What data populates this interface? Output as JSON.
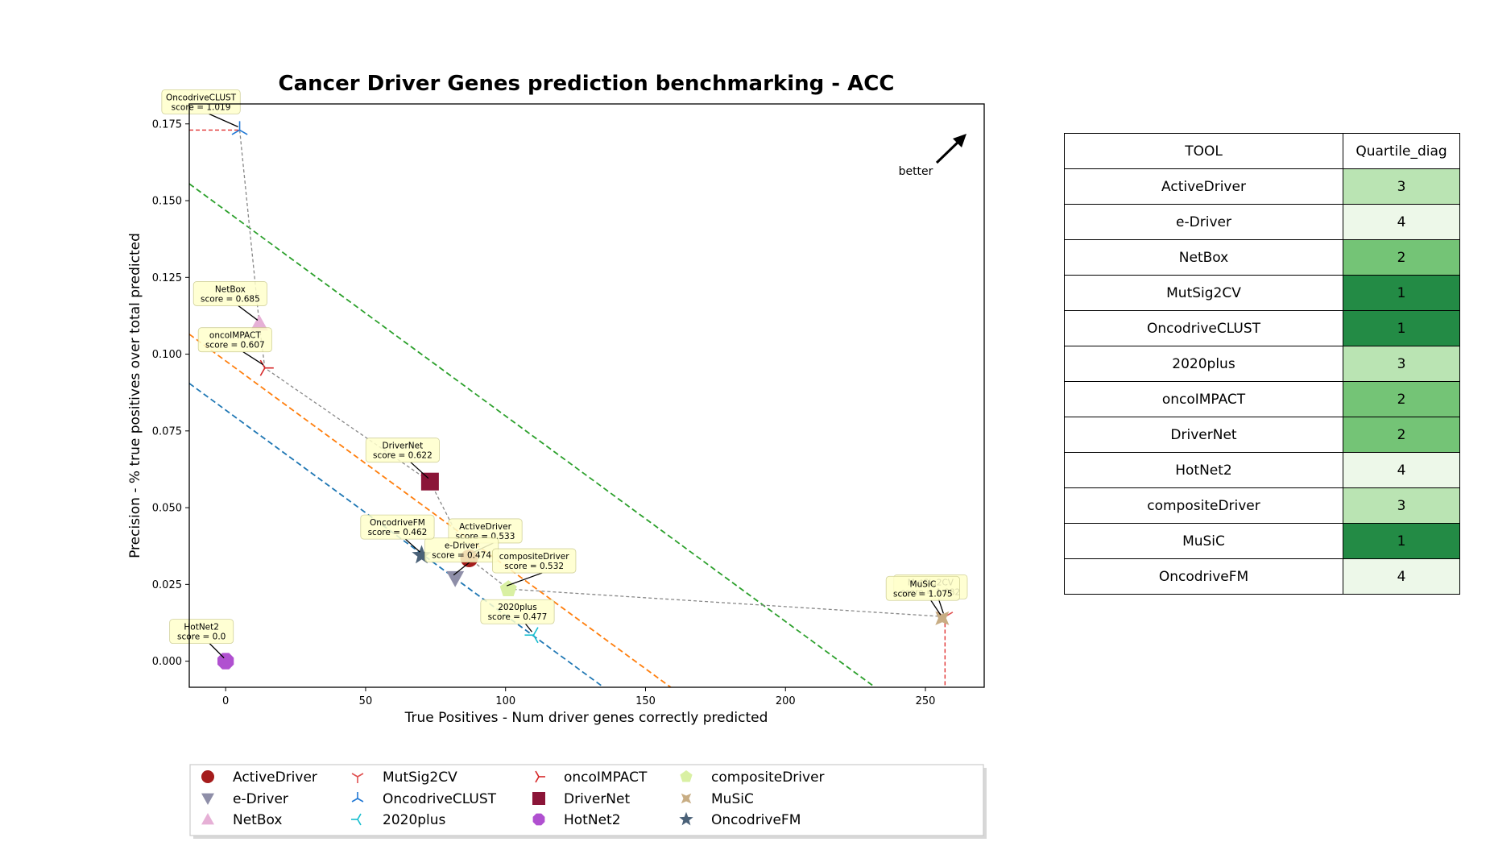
{
  "chart_data": {
    "type": "scatter",
    "title": "Cancer Driver Genes prediction benchmarking - ACC",
    "xlabel": "True Positives - Num driver genes correctly predicted",
    "ylabel": "Precision - % true positives over total predicted",
    "xlim": [
      -13,
      271
    ],
    "ylim": [
      -0.0085,
      0.1815
    ],
    "xticks": [
      0,
      50,
      100,
      150,
      200,
      250
    ],
    "yticks": [
      0.0,
      0.025,
      0.05,
      0.075,
      0.1,
      0.125,
      0.15,
      0.175
    ],
    "ytick_labels": [
      "0.000",
      "0.025",
      "0.050",
      "0.075",
      "0.100",
      "0.125",
      "0.150",
      "0.175"
    ],
    "better_label": "better",
    "legend_position": "bottom",
    "points": [
      {
        "name": "ActiveDriver",
        "x": 87,
        "y": 0.0335,
        "score": "score = 0.533",
        "marker": "circle",
        "color": "#a51c1c"
      },
      {
        "name": "e-Driver",
        "x": 82,
        "y": 0.027,
        "score": "score = 0.474",
        "marker": "triangle-down",
        "color": "#8e8ea8"
      },
      {
        "name": "NetBox",
        "x": 12,
        "y": 0.11,
        "score": "score = 0.685",
        "marker": "triangle-up",
        "color": "#e6b0d6"
      },
      {
        "name": "MutSig2CV",
        "x": 257,
        "y": 0.0145,
        "score": "score = 1.082",
        "marker": "tri-down",
        "color": "#e05050"
      },
      {
        "name": "OncodriveCLUST",
        "x": 5,
        "y": 0.173,
        "score": "score = 1.019",
        "marker": "tri-up",
        "color": "#1f77d4"
      },
      {
        "name": "2020plus",
        "x": 110,
        "y": 0.0085,
        "score": "score = 0.477",
        "marker": "tri-left",
        "color": "#17becf"
      },
      {
        "name": "oncoIMPACT",
        "x": 14,
        "y": 0.0955,
        "score": "score = 0.607",
        "marker": "tri-right",
        "color": "#d62728"
      },
      {
        "name": "DriverNet",
        "x": 73,
        "y": 0.0585,
        "score": "score = 0.622",
        "marker": "square",
        "color": "#8b1538"
      },
      {
        "name": "HotNet2",
        "x": 0,
        "y": 0.0,
        "score": "score = 0.0",
        "marker": "octagon",
        "color": "#b050d0"
      },
      {
        "name": "compositeDriver",
        "x": 101,
        "y": 0.0235,
        "score": "score = 0.532",
        "marker": "pentagon",
        "color": "#d9f0a3"
      },
      {
        "name": "MuSiC",
        "x": 256,
        "y": 0.014,
        "score": "score = 1.075",
        "marker": "plus",
        "color": "#c8ad84"
      },
      {
        "name": "OncodriveFM",
        "x": 70,
        "y": 0.0345,
        "score": "score = 0.462",
        "marker": "star",
        "color": "#4a6178"
      }
    ],
    "pareto_line": [
      {
        "x": 5,
        "y": 0.173
      },
      {
        "x": 12,
        "y": 0.11
      },
      {
        "x": 14,
        "y": 0.0955
      },
      {
        "x": 73,
        "y": 0.0585
      },
      {
        "x": 87,
        "y": 0.0335
      },
      {
        "x": 101,
        "y": 0.0235
      },
      {
        "x": 257,
        "y": 0.0145
      }
    ],
    "quartile_lines": [
      {
        "color": "#1f77b4",
        "points": [
          {
            "x": -13,
            "y": 0.0905
          },
          {
            "x": 135,
            "y": -0.0085
          }
        ]
      },
      {
        "color": "#ff7f0e",
        "points": [
          {
            "x": -13,
            "y": 0.1065
          },
          {
            "x": 159,
            "y": -0.0085
          }
        ]
      },
      {
        "color": "#2ca02c",
        "points": [
          {
            "x": -13,
            "y": 0.1555
          },
          {
            "x": 232,
            "y": -0.0085
          }
        ]
      }
    ]
  },
  "table": {
    "headers": [
      "TOOL",
      "Quartile_diag"
    ],
    "rows": [
      {
        "tool": "ActiveDriver",
        "quartile": "3",
        "color": "#bae4b3"
      },
      {
        "tool": "e-Driver",
        "quartile": "4",
        "color": "#edf8e9"
      },
      {
        "tool": "NetBox",
        "quartile": "2",
        "color": "#74c476"
      },
      {
        "tool": "MutSig2CV",
        "quartile": "1",
        "color": "#238b45"
      },
      {
        "tool": "OncodriveCLUST",
        "quartile": "1",
        "color": "#238b45"
      },
      {
        "tool": "2020plus",
        "quartile": "3",
        "color": "#bae4b3"
      },
      {
        "tool": "oncoIMPACT",
        "quartile": "2",
        "color": "#74c476"
      },
      {
        "tool": "DriverNet",
        "quartile": "2",
        "color": "#74c476"
      },
      {
        "tool": "HotNet2",
        "quartile": "4",
        "color": "#edf8e9"
      },
      {
        "tool": "compositeDriver",
        "quartile": "3",
        "color": "#bae4b3"
      },
      {
        "tool": "MuSiC",
        "quartile": "1",
        "color": "#238b45"
      },
      {
        "tool": "OncodriveFM",
        "quartile": "4",
        "color": "#edf8e9"
      }
    ]
  }
}
